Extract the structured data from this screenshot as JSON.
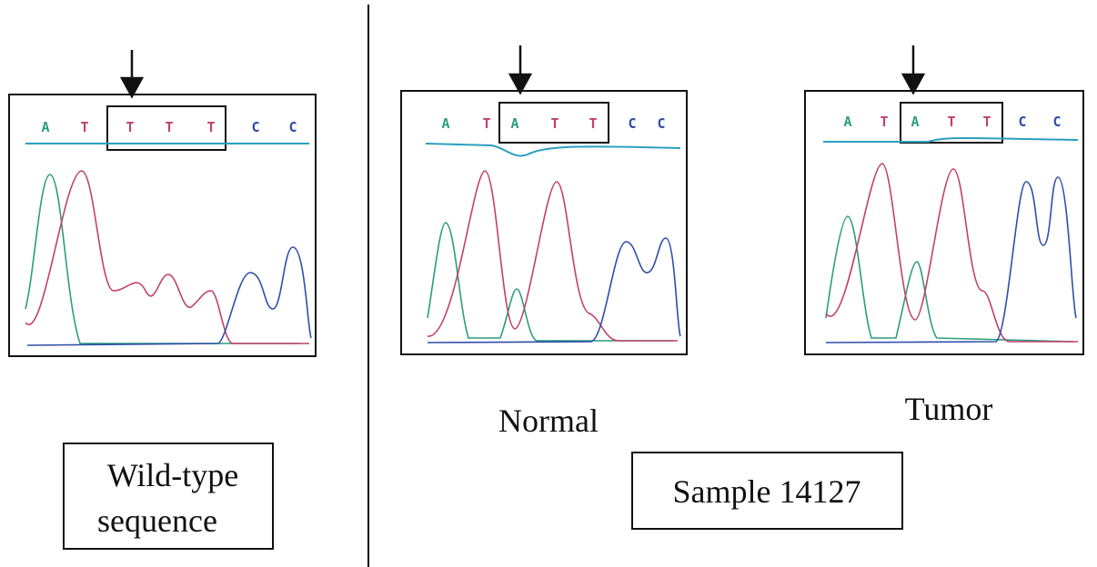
{
  "panels": [
    {
      "bases": [
        "A",
        "T",
        "T",
        "T",
        "T",
        "C",
        "C"
      ]
    },
    {
      "bases": [
        "A",
        "T",
        "A",
        "T",
        "T",
        "C",
        "C"
      ],
      "label": "Normal"
    },
    {
      "bases": [
        "A",
        "T",
        "A",
        "T",
        "T",
        "C",
        "C"
      ],
      "label": "Tumor"
    }
  ],
  "wildtype_label": [
    "Wild-type",
    "sequence"
  ],
  "sample_label": "Sample 14127",
  "base_colors": {
    "A": "#2a9d7f",
    "T": "#c2406a",
    "C": "#2f4fa8"
  }
}
